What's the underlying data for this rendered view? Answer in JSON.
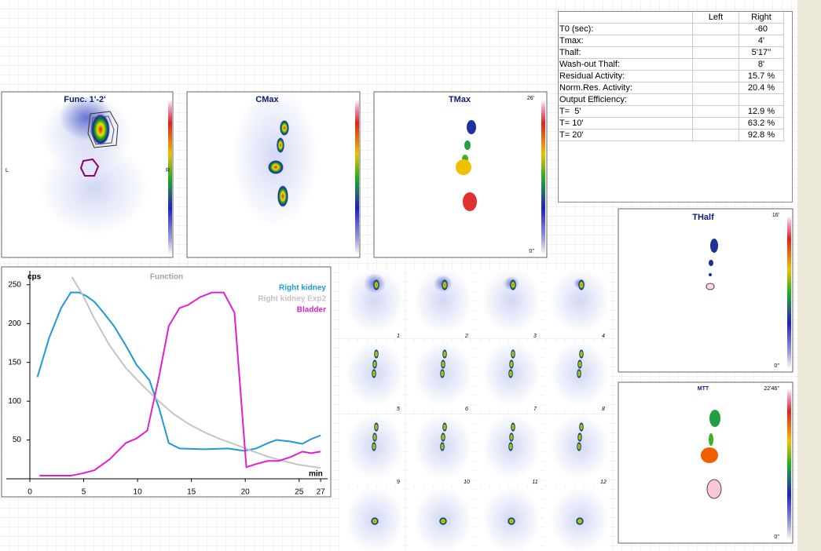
{
  "panels": [
    {
      "title": "Func. 1'-2'",
      "left": "L",
      "right": "R"
    },
    {
      "title": "CMax"
    },
    {
      "title": "TMax",
      "max": "26'",
      "min": "0''"
    },
    {
      "title": "THalf",
      "max": "16'",
      "min": "0''"
    },
    {
      "title": "MTT",
      "max": "22'46''",
      "min": "0''"
    }
  ],
  "table": {
    "header": {
      "left": "Left",
      "right": "Right"
    },
    "rows": [
      {
        "label": "T0 (sec):",
        "right": "-60"
      },
      {
        "label": "Tmax:",
        "right": "4'"
      },
      {
        "label": "Thalf:",
        "right": "5'17''"
      },
      {
        "label": "Wash-out Thalf:",
        "right": "8'"
      },
      {
        "label": "Residual Activity:",
        "right": "15.7 %"
      },
      {
        "label": "Norm.Res. Activity:",
        "right": "20.4 %"
      },
      {
        "label": "Output Efficiency:"
      },
      {
        "label": "T=  5'",
        "right": "12.9 %"
      },
      {
        "label": "T= 10'",
        "right": "63.2 %"
      },
      {
        "label": "T= 20'",
        "right": "92.8 %"
      }
    ]
  },
  "frames": [
    1,
    2,
    3,
    4,
    5,
    6,
    7,
    8,
    9,
    10,
    11,
    12
  ],
  "chart_data": {
    "type": "line",
    "title": "Function",
    "y_label": "cps",
    "x_label": "min",
    "xlim": [
      0,
      27.5
    ],
    "ylim": [
      0,
      268
    ],
    "xticks": [
      0,
      5,
      10,
      15,
      20,
      25,
      27
    ],
    "yticks": [
      50,
      100,
      150,
      200,
      250
    ],
    "series": [
      {
        "name": "Right kidney",
        "color": "#1e9ad6",
        "x": [
          0.7,
          1.8,
          2.9,
          3.8,
          4.6,
          5.3,
          6,
          6.9,
          7.8,
          8.9,
          9.9,
          11.1,
          12,
          12.9,
          13.9,
          16.2,
          18.4,
          19.9,
          21,
          22.1,
          22.9,
          24.2,
          25.3,
          26.1,
          27
        ],
        "values": [
          131,
          182,
          220,
          240,
          240,
          235,
          228,
          213,
          197,
          172,
          147,
          127,
          91,
          46,
          39,
          38,
          39,
          36,
          39,
          46,
          50,
          48,
          45,
          51,
          56
        ]
      },
      {
        "name": "Right kidney Exp2",
        "color": "#c4c4c4",
        "x": [
          3.9,
          4.9,
          6,
          7.4,
          8.9,
          10.4,
          11.9,
          13.3,
          14.7,
          16.2,
          17.7,
          19.1,
          20.6,
          22,
          23.5,
          25,
          27
        ],
        "values": [
          260,
          237,
          206,
          172,
          143,
          121,
          101,
          84,
          71,
          60,
          51,
          44,
          36,
          29,
          23,
          18,
          14
        ]
      },
      {
        "name": "Bladder",
        "color": "#e020d0",
        "x": [
          0.9,
          3.8,
          4.9,
          6,
          7.4,
          8.9,
          9.9,
          10.9,
          12,
          12.9,
          13.9,
          14.7,
          15.8,
          16.9,
          18,
          19,
          20.1,
          21,
          22.1,
          23.1,
          24.2,
          25.3,
          26.1,
          27
        ],
        "values": [
          4,
          4,
          7,
          11,
          25,
          46,
          52,
          62,
          132,
          197,
          220,
          224,
          234,
          240,
          240,
          214,
          15,
          19,
          23,
          23,
          28,
          35,
          33,
          35
        ]
      }
    ]
  }
}
